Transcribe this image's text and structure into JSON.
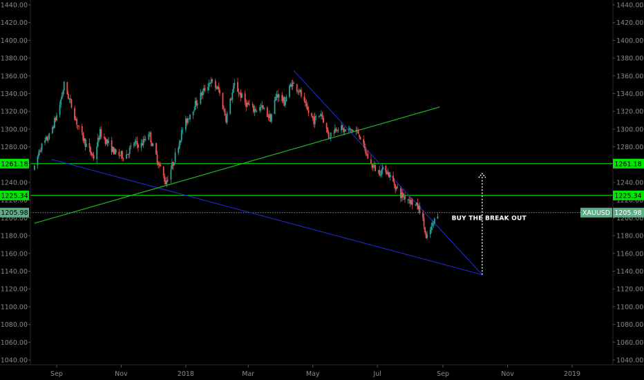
{
  "chart_data": {
    "type": "candlestick",
    "symbol": "XAUUSD",
    "last_price": 1205.98,
    "ylim": [
      1030,
      1450
    ],
    "y_ticks": [
      "1440.00",
      "1420.00",
      "1400.00",
      "1380.00",
      "1360.00",
      "1340.00",
      "1320.00",
      "1300.00",
      "1280.00",
      "1260.00",
      "1240.00",
      "1220.00",
      "1200.00",
      "1180.00",
      "1160.00",
      "1140.00",
      "1120.00",
      "1100.00",
      "1080.00",
      "1060.00",
      "1040.00"
    ],
    "x_ticks": [
      {
        "label": "Sep",
        "date": "2017-09-01"
      },
      {
        "label": "Nov",
        "date": "2017-11-01"
      },
      {
        "label": "2018",
        "date": "2018-01-01"
      },
      {
        "label": "Mar",
        "date": "2018-03-01"
      },
      {
        "label": "May",
        "date": "2018-05-01"
      },
      {
        "label": "Jul",
        "date": "2018-07-01"
      },
      {
        "label": "Sep",
        "date": "2018-09-01"
      },
      {
        "label": "Nov",
        "date": "2018-11-01"
      },
      {
        "label": "2019",
        "date": "2019-01-01"
      }
    ],
    "xlim": [
      "2017-08-11",
      "2019-02-01"
    ],
    "price_path": [
      [
        "2017-08-11",
        1255
      ],
      [
        "2017-08-16",
        1278
      ],
      [
        "2017-08-25",
        1292
      ],
      [
        "2017-09-03",
        1322
      ],
      [
        "2017-09-08",
        1350
      ],
      [
        "2017-09-14",
        1330
      ],
      [
        "2017-09-22",
        1300
      ],
      [
        "2017-09-29",
        1282
      ],
      [
        "2017-10-06",
        1268
      ],
      [
        "2017-10-12",
        1296
      ],
      [
        "2017-10-20",
        1283
      ],
      [
        "2017-10-27",
        1272
      ],
      [
        "2017-11-05",
        1270
      ],
      [
        "2017-11-13",
        1284
      ],
      [
        "2017-11-20",
        1282
      ],
      [
        "2017-11-27",
        1297
      ],
      [
        "2017-12-01",
        1280
      ],
      [
        "2017-12-08",
        1256
      ],
      [
        "2017-12-13",
        1240
      ],
      [
        "2017-12-20",
        1262
      ],
      [
        "2017-12-29",
        1300
      ],
      [
        "2018-01-06",
        1320
      ],
      [
        "2018-01-14",
        1336
      ],
      [
        "2018-01-24",
        1354
      ],
      [
        "2018-02-01",
        1344
      ],
      [
        "2018-02-08",
        1312
      ],
      [
        "2018-02-16",
        1350
      ],
      [
        "2018-02-26",
        1330
      ],
      [
        "2018-03-06",
        1322
      ],
      [
        "2018-03-14",
        1324
      ],
      [
        "2018-03-22",
        1312
      ],
      [
        "2018-03-28",
        1340
      ],
      [
        "2018-04-04",
        1330
      ],
      [
        "2018-04-11",
        1352
      ],
      [
        "2018-04-18",
        1344
      ],
      [
        "2018-04-25",
        1322
      ],
      [
        "2018-05-02",
        1310
      ],
      [
        "2018-05-09",
        1318
      ],
      [
        "2018-05-16",
        1292
      ],
      [
        "2018-05-24",
        1303
      ],
      [
        "2018-05-31",
        1298
      ],
      [
        "2018-06-07",
        1299
      ],
      [
        "2018-06-14",
        1295
      ],
      [
        "2018-06-18",
        1279
      ],
      [
        "2018-06-25",
        1260
      ],
      [
        "2018-07-02",
        1252
      ],
      [
        "2018-07-09",
        1255
      ],
      [
        "2018-07-16",
        1240
      ],
      [
        "2018-07-23",
        1226
      ],
      [
        "2018-07-30",
        1222
      ],
      [
        "2018-08-06",
        1214
      ],
      [
        "2018-08-10",
        1210
      ],
      [
        "2018-08-14",
        1192
      ],
      [
        "2018-08-16",
        1175
      ],
      [
        "2018-08-20",
        1186
      ],
      [
        "2018-08-23",
        1194
      ],
      [
        "2018-08-27",
        1206
      ]
    ],
    "horizontal_lines": [
      {
        "label": "1261.18",
        "value": 1261.18,
        "color": "#00e600"
      },
      {
        "label": "1225.34",
        "value": 1225.34,
        "color": "#00e600"
      },
      {
        "label": "1205.98",
        "value": 1205.98,
        "color": "#bbbbbb",
        "style": "dotted"
      }
    ],
    "trend_lines": [
      {
        "id": "upper-blue",
        "color": "#1f2bd6",
        "from": [
          "2018-04-13",
          1366
        ],
        "to": [
          "2018-10-08",
          1136
        ]
      },
      {
        "id": "lower-blue",
        "color": "#1f2bd6",
        "from": [
          "2017-08-27",
          1266
        ],
        "to": [
          "2018-10-08",
          1136
        ]
      },
      {
        "id": "green-rising",
        "color": "#22c922",
        "from": [
          "2017-08-11",
          1194
        ],
        "to": [
          "2018-08-29",
          1325
        ]
      }
    ],
    "projection_arrow": {
      "date": "2018-10-08",
      "from": 1136,
      "to": 1250,
      "color": "#ffffff"
    },
    "annotation": {
      "text": "BUY THE BREAK OUT",
      "date": "2018-08-31",
      "value": 1200
    },
    "colors": {
      "up": "#26a69a",
      "down": "#ef5350",
      "background": "#000000",
      "tag_green": "#00e600",
      "tag_symbol": "#5bae86"
    }
  }
}
